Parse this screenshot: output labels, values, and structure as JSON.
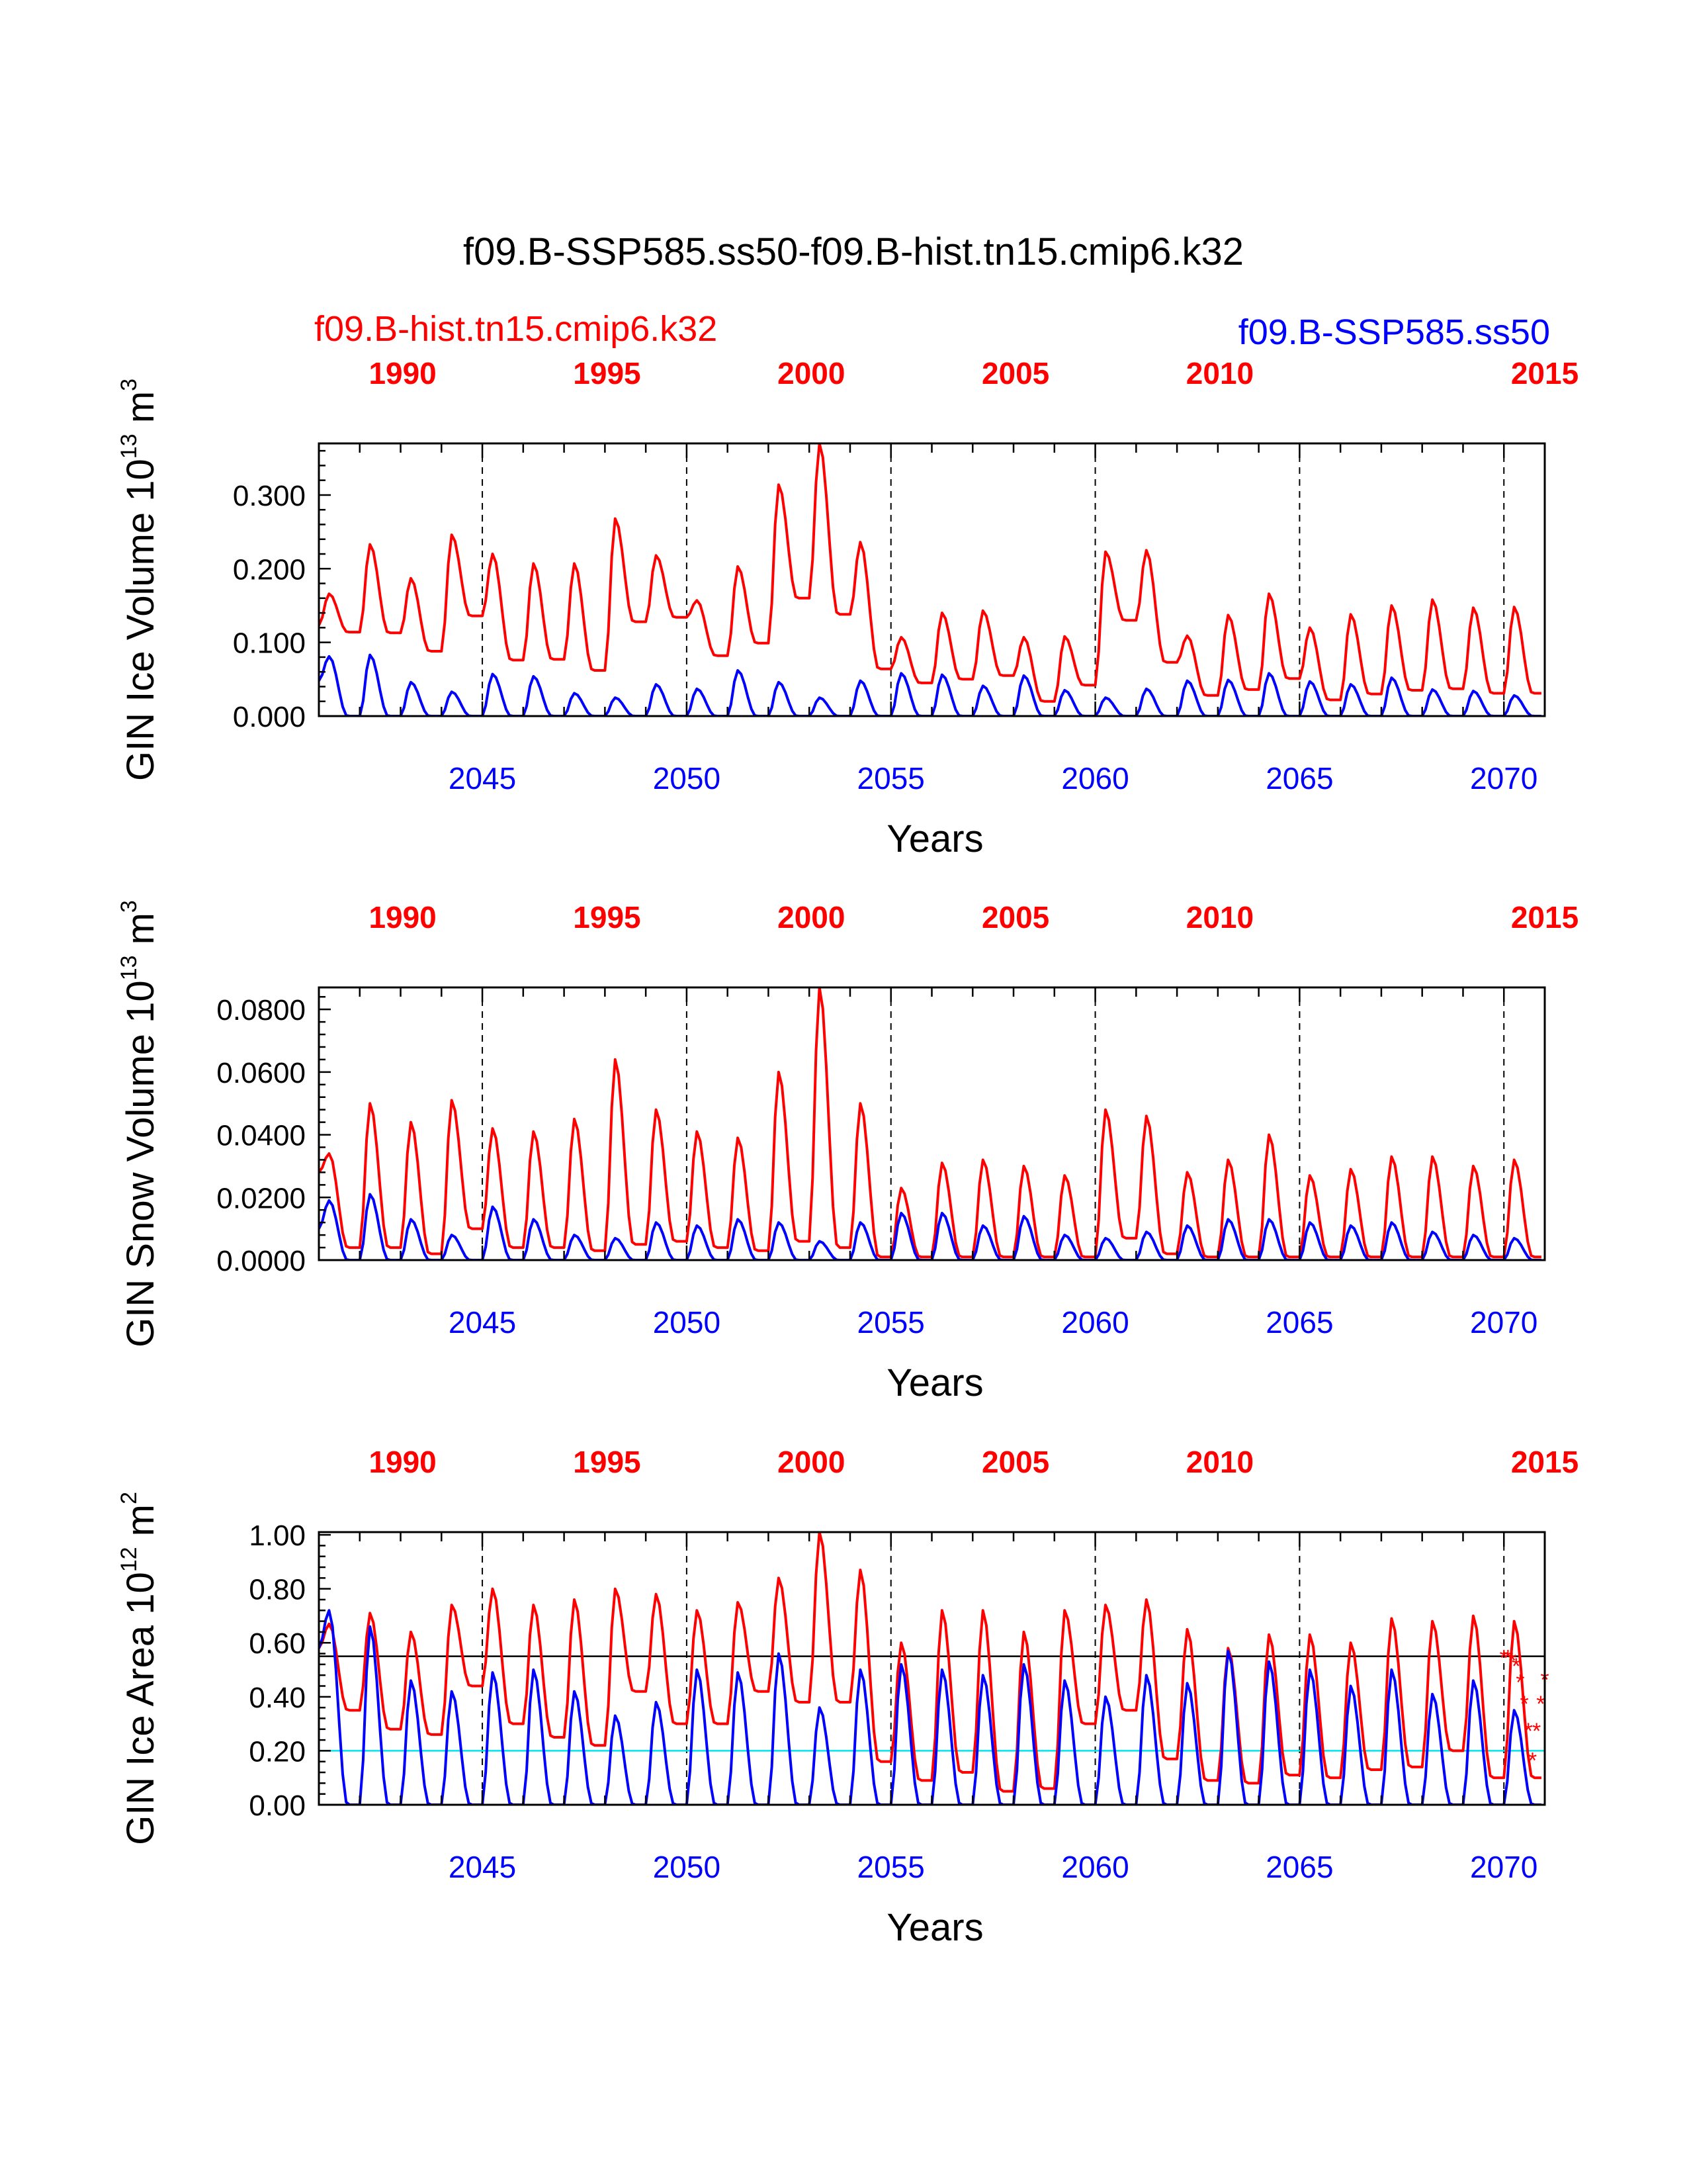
{
  "title": "f09.B-SSP585.ss50-f09.B-hist.tn15.cmip6.k32",
  "legend": {
    "left_case": "f09.B-hist.tn15.cmip6.k32",
    "right_case": "f09.B-SSP585.ss50",
    "left_color": "#ff0000",
    "right_color": "#0000ff"
  },
  "colors": {
    "hist": "#ff0000",
    "ssp": "#0000ff",
    "ref_black": "#000000",
    "ref_cyan": "#00e5ee"
  },
  "chart_data": [
    {
      "type": "line",
      "ylabel": "GIN Ice Volume 10",
      "ylabel_exp": "13",
      "ylabel_unit": " m",
      "ylabel_unit_exp": "3",
      "xlabel": "Years",
      "ylim": [
        0,
        0.37
      ],
      "yticks": [
        "0.000",
        "0.100",
        "0.200",
        "0.300"
      ],
      "ytick_values": [
        0,
        0.1,
        0.2,
        0.3
      ],
      "xlim": [
        2041,
        2071
      ],
      "bottom_ticks": [
        "2045",
        "2050",
        "2055",
        "2060",
        "2065",
        "2070"
      ],
      "top_ticks": [
        "1990",
        "1995",
        "2000",
        "2005",
        "2010",
        "2015"
      ],
      "series": [
        {
          "color": "hist",
          "x_start": 2041,
          "peaks": [
            0.166,
            0.233,
            0.187,
            0.246,
            0.22,
            0.207,
            0.207,
            0.268,
            0.218,
            0.157,
            0.203,
            0.314,
            0.37,
            0.236,
            0.107,
            0.14,
            0.143,
            0.107,
            0.108,
            0.223,
            0.225,
            0.109,
            0.137,
            0.166,
            0.12,
            0.138,
            0.15,
            0.158,
            0.147,
            0.148
          ],
          "troughs": [
            0.123,
            0.114,
            0.113,
            0.088,
            0.136,
            0.076,
            0.077,
            0.062,
            0.128,
            0.134,
            0.082,
            0.099,
            0.16,
            0.138,
            0.064,
            0.045,
            0.05,
            0.055,
            0.02,
            0.042,
            0.13,
            0.073,
            0.028,
            0.036,
            0.051,
            0.022,
            0.03,
            0.035,
            0.037,
            0.031
          ]
        },
        {
          "color": "ssp",
          "x_start": 2041,
          "peaks": [
            0.081,
            0.083,
            0.046,
            0.033,
            0.057,
            0.054,
            0.031,
            0.025,
            0.043,
            0.037,
            0.062,
            0.046,
            0.025,
            0.048,
            0.058,
            0.056,
            0.041,
            0.055,
            0.035,
            0.025,
            0.037,
            0.048,
            0.049,
            0.058,
            0.047,
            0.043,
            0.052,
            0.036,
            0.034,
            0.028
          ],
          "troughs": [
            0.048,
            0.0,
            0.0,
            0.0,
            0.0,
            0.0,
            0.0,
            0.0,
            0.0,
            0.0,
            0.0,
            0.0,
            0.0,
            0.0,
            0.0,
            0.0,
            0.0,
            0.0,
            0.0,
            0.0,
            0.0,
            0.0,
            0.0,
            0.0,
            0.0,
            0.0,
            0.0,
            0.0,
            0.0,
            0.0
          ]
        }
      ],
      "ref_lines": []
    },
    {
      "type": "line",
      "ylabel": "GIN Snow Volume 10",
      "ylabel_exp": "13",
      "ylabel_unit": " m",
      "ylabel_unit_exp": "3",
      "xlabel": "Years",
      "ylim": [
        0,
        0.087
      ],
      "yticks": [
        "0.0000",
        "0.0200",
        "0.0400",
        "0.0600",
        "0.0800"
      ],
      "ytick_values": [
        0,
        0.02,
        0.04,
        0.06,
        0.08
      ],
      "xlim": [
        2041,
        2071
      ],
      "bottom_ticks": [
        "2045",
        "2050",
        "2055",
        "2060",
        "2065",
        "2070"
      ],
      "top_ticks": [
        "1990",
        "1995",
        "2000",
        "2005",
        "2010",
        "2015"
      ],
      "series": [
        {
          "color": "hist",
          "x_start": 2041,
          "peaks": [
            0.034,
            0.05,
            0.044,
            0.051,
            0.042,
            0.041,
            0.045,
            0.064,
            0.048,
            0.041,
            0.039,
            0.06,
            0.087,
            0.05,
            0.023,
            0.031,
            0.032,
            0.03,
            0.027,
            0.048,
            0.046,
            0.028,
            0.032,
            0.04,
            0.027,
            0.029,
            0.033,
            0.033,
            0.03,
            0.032
          ],
          "troughs": [
            0.028,
            0.004,
            0.004,
            0.002,
            0.01,
            0.004,
            0.004,
            0.003,
            0.005,
            0.006,
            0.004,
            0.003,
            0.006,
            0.004,
            0.001,
            0.001,
            0.001,
            0.001,
            0.001,
            0.001,
            0.007,
            0.002,
            0.001,
            0.001,
            0.001,
            0.001,
            0.001,
            0.001,
            0.001,
            0.001
          ]
        },
        {
          "color": "ssp",
          "x_start": 2041,
          "peaks": [
            0.019,
            0.021,
            0.013,
            0.008,
            0.017,
            0.013,
            0.008,
            0.007,
            0.012,
            0.011,
            0.013,
            0.012,
            0.006,
            0.012,
            0.015,
            0.015,
            0.011,
            0.014,
            0.008,
            0.007,
            0.009,
            0.011,
            0.013,
            0.013,
            0.012,
            0.011,
            0.012,
            0.009,
            0.008,
            0.007
          ],
          "troughs": [
            0.01,
            0.0,
            0.0,
            0.0,
            0.0,
            0.0,
            0.0,
            0.0,
            0.0,
            0.0,
            0.0,
            0.0,
            0.0,
            0.0,
            0.0,
            0.0,
            0.0,
            0.0,
            0.0,
            0.0,
            0.0,
            0.0,
            0.0,
            0.0,
            0.0,
            0.0,
            0.0,
            0.0,
            0.0,
            0.0
          ]
        }
      ],
      "ref_lines": []
    },
    {
      "type": "line",
      "ylabel": "GIN Ice Area 10",
      "ylabel_exp": "12",
      "ylabel_unit": " m",
      "ylabel_unit_exp": "2",
      "xlabel": "Years",
      "ylim": [
        0,
        1.01
      ],
      "yticks": [
        "0.00",
        "0.20",
        "0.40",
        "0.60",
        "0.80",
        "1.00"
      ],
      "ytick_values": [
        0,
        0.2,
        0.4,
        0.6,
        0.8,
        1.0
      ],
      "xlim": [
        2041,
        2071
      ],
      "bottom_ticks": [
        "2045",
        "2050",
        "2055",
        "2060",
        "2065",
        "2070"
      ],
      "top_ticks": [
        "1990",
        "1995",
        "2000",
        "2005",
        "2010",
        "2015"
      ],
      "series": [
        {
          "color": "hist",
          "x_start": 2041,
          "peaks": [
            0.67,
            0.71,
            0.64,
            0.74,
            0.8,
            0.74,
            0.76,
            0.8,
            0.78,
            0.72,
            0.75,
            0.84,
            1.01,
            0.87,
            0.6,
            0.72,
            0.72,
            0.64,
            0.72,
            0.74,
            0.76,
            0.65,
            0.58,
            0.63,
            0.63,
            0.6,
            0.69,
            0.68,
            0.7,
            0.68
          ],
          "troughs": [
            0.58,
            0.35,
            0.28,
            0.26,
            0.44,
            0.3,
            0.25,
            0.22,
            0.42,
            0.3,
            0.3,
            0.42,
            0.38,
            0.38,
            0.16,
            0.09,
            0.12,
            0.05,
            0.06,
            0.3,
            0.35,
            0.17,
            0.09,
            0.08,
            0.11,
            0.1,
            0.13,
            0.14,
            0.2,
            0.1
          ]
        },
        {
          "color": "ssp",
          "x_start": 2041,
          "peaks": [
            0.72,
            0.66,
            0.46,
            0.42,
            0.49,
            0.5,
            0.42,
            0.33,
            0.38,
            0.5,
            0.49,
            0.56,
            0.36,
            0.5,
            0.52,
            0.5,
            0.48,
            0.52,
            0.46,
            0.4,
            0.48,
            0.45,
            0.57,
            0.53,
            0.5,
            0.44,
            0.5,
            0.41,
            0.46,
            0.35
          ],
          "troughs": [
            0.58,
            0.0,
            0.0,
            0.0,
            0.0,
            0.0,
            0.0,
            0.0,
            0.0,
            0.0,
            0.0,
            0.0,
            0.0,
            0.0,
            0.0,
            0.0,
            0.0,
            0.0,
            0.0,
            0.0,
            0.0,
            0.0,
            0.0,
            0.0,
            0.0,
            0.0,
            0.0,
            0.0,
            0.0,
            0.0
          ]
        }
      ],
      "ref_lines": [
        {
          "y": 0.55,
          "color": "ref_black"
        },
        {
          "y": 0.2,
          "color": "ref_cyan"
        }
      ],
      "markers": {
        "symbol": "*",
        "color": "hist",
        "x": [
          2070.0,
          2070.1,
          2070.2,
          2070.3,
          2070.4,
          2070.5,
          2070.6,
          2070.7,
          2070.8,
          2070.9,
          2071.0
        ],
        "y": [
          0.55,
          0.55,
          0.54,
          0.52,
          0.46,
          0.38,
          0.28,
          0.17,
          0.28,
          0.38,
          0.47
        ]
      }
    }
  ]
}
